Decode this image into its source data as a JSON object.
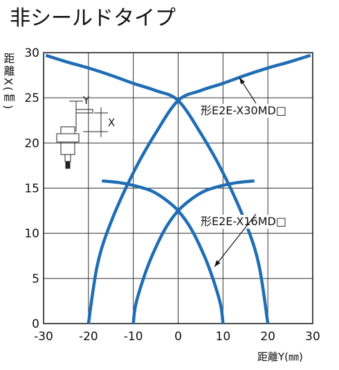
{
  "chart_data": {
    "type": "line",
    "title": "非シールドタイプ",
    "x_label": "距離Y(㎜)",
    "y_label": "距離X(㎜)",
    "xlim": [
      -30,
      30
    ],
    "xticks": [
      -30,
      -20,
      -10,
      0,
      10,
      20,
      30
    ],
    "ylim": [
      0,
      30
    ],
    "yticks": [
      0,
      5,
      10,
      15,
      20,
      25,
      30
    ],
    "grid": true,
    "color": "#1f6db4",
    "series": [
      {
        "x": [
          -29.5,
          -25,
          -20,
          -15,
          -10,
          -5,
          0,
          5,
          10,
          15,
          18,
          20
        ],
        "values": [
          29.7,
          29.0,
          28.3,
          27.5,
          26.6,
          25.8,
          24.7,
          21.1,
          16.7,
          11.2,
          6.5,
          0
        ]
      },
      {
        "x": [
          29.5,
          25,
          20,
          15,
          10,
          5,
          0,
          -5,
          -10,
          -15,
          -18,
          -20
        ],
        "values": [
          29.7,
          29.0,
          28.3,
          27.5,
          26.6,
          25.8,
          24.7,
          21.1,
          16.7,
          11.2,
          6.5,
          0
        ]
      },
      {
        "x": [
          -17,
          -13,
          -10,
          -6,
          -3,
          0,
          3,
          6,
          8,
          9.5,
          10
        ],
        "values": [
          15.8,
          15.6,
          15.3,
          14.7,
          13.8,
          12.5,
          10.4,
          7.3,
          4.6,
          2,
          0
        ]
      },
      {
        "x": [
          17,
          13,
          10,
          6,
          3,
          0,
          -3,
          -6,
          -8,
          -9.5,
          -10
        ],
        "values": [
          15.8,
          15.6,
          15.3,
          14.7,
          13.8,
          12.5,
          10.4,
          7.3,
          4.6,
          2,
          0
        ]
      }
    ],
    "annotations": [
      "形E2E-X30MD□",
      "形E2E-X16MD□"
    ],
    "inset_labels": [
      "Y",
      "X"
    ]
  }
}
